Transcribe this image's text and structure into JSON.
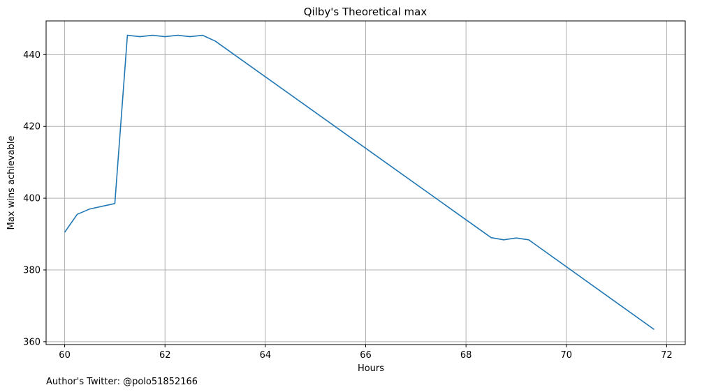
{
  "chart_data": {
    "type": "line",
    "title": "Qilby's Theoretical max",
    "xlabel": "Hours",
    "ylabel": "Max wins achievable",
    "xlim": [
      59.63,
      72.37
    ],
    "ylim": [
      359.2,
      449.4
    ],
    "xticks": [
      60,
      62,
      64,
      66,
      68,
      70,
      72
    ],
    "yticks": [
      360,
      380,
      400,
      420,
      440
    ],
    "grid": true,
    "color": "#1f77b4",
    "annotation": "Author's Twitter: @polo51852166",
    "series": [
      {
        "x": [
          60,
          60.25,
          60.5,
          61,
          61.25,
          61.5,
          61.75,
          62,
          62.25,
          62.5,
          62.75,
          63,
          68.5,
          68.75,
          69,
          69.25,
          71.75
        ],
        "y": [
          390.5,
          395.5,
          397,
          398.5,
          445.4,
          445,
          445.4,
          445,
          445.4,
          445,
          445.4,
          443.8,
          389,
          388.4,
          388.9,
          388.4,
          363.4
        ]
      }
    ]
  }
}
